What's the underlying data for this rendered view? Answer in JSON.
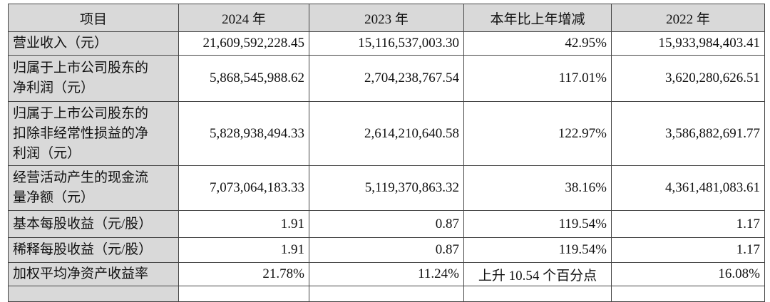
{
  "table": {
    "headers": {
      "item": "项目",
      "y2024": "2024 年",
      "y2023": "2023 年",
      "change": "本年比上年增减",
      "y2022": "2022 年"
    },
    "rows": [
      {
        "item": "营业收入（元）",
        "y2024": "21,609,592,228.45",
        "y2023": "15,116,537,003.30",
        "change": "42.95%",
        "y2022": "15,933,984,403.41"
      },
      {
        "item": "归属于上市公司股东的\n净利润（元）",
        "y2024": "5,868,545,988.62",
        "y2023": "2,704,238,767.54",
        "change": "117.01%",
        "y2022": "3,620,280,626.51"
      },
      {
        "item": "归属于上市公司股东的\n扣除非经常性损益的净\n利润（元）",
        "y2024": "5,828,938,494.33",
        "y2023": "2,614,210,640.58",
        "change": "122.97%",
        "y2022": "3,586,882,691.77"
      },
      {
        "item": "经营活动产生的现金流\n量净额（元）",
        "y2024": "7,073,064,183.33",
        "y2023": "5,119,370,863.32",
        "change": "38.16%",
        "y2022": "4,361,481,083.61"
      },
      {
        "item": "基本每股收益（元/股）",
        "y2024": "1.91",
        "y2023": "0.87",
        "change": "119.54%",
        "y2022": "1.17"
      },
      {
        "item": "稀释每股收益（元/股）",
        "y2024": "1.91",
        "y2023": "0.87",
        "change": "119.54%",
        "y2022": "1.17"
      },
      {
        "item": "加权平均净资产收益率",
        "y2024": "21.78%",
        "y2023": "11.24%",
        "change": "上升 10.54 个百分点",
        "y2022": "16.08%"
      }
    ],
    "colors": {
      "header_bg": "#d9d9d9",
      "border": "#454545",
      "text": "#111111",
      "page_bg": "#ffffff"
    }
  }
}
